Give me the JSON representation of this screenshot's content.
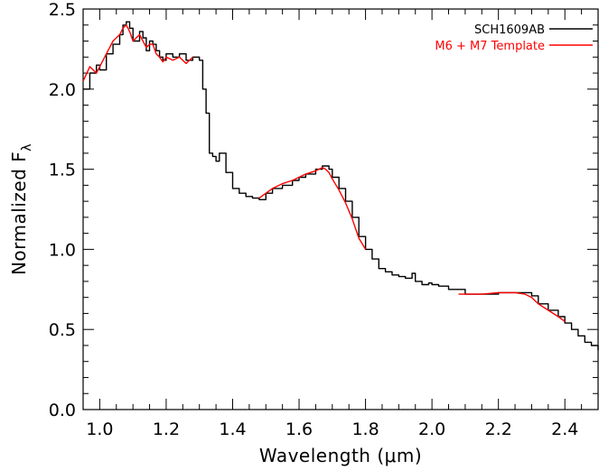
{
  "chart_data": {
    "type": "line",
    "xlabel": "Wavelength (μm)",
    "ylabel_main": "Normalized F",
    "ylabel_sub": "λ",
    "xlim": [
      0.95,
      2.5
    ],
    "ylim": [
      0.0,
      2.5
    ],
    "xticks": [
      1.0,
      1.2,
      1.4,
      1.6,
      1.8,
      2.0,
      2.2,
      2.4
    ],
    "xtick_labels": [
      "1.0",
      "1.2",
      "1.4",
      "1.6",
      "1.8",
      "2.0",
      "2.2",
      "2.4"
    ],
    "yticks": [
      0.0,
      0.5,
      1.0,
      1.5,
      2.0,
      2.5
    ],
    "ytick_labels": [
      "0.0",
      "0.5",
      "1.0",
      "1.5",
      "2.0",
      "2.5"
    ],
    "legend_position": "top-right",
    "series": [
      {
        "name": "SCH1609AB",
        "color": "#000000",
        "step": true,
        "x": [
          0.95,
          0.97,
          0.99,
          1.0,
          1.02,
          1.04,
          1.06,
          1.07,
          1.08,
          1.09,
          1.1,
          1.12,
          1.13,
          1.14,
          1.15,
          1.16,
          1.17,
          1.18,
          1.19,
          1.2,
          1.22,
          1.24,
          1.26,
          1.28,
          1.3,
          1.31,
          1.32,
          1.33,
          1.34,
          1.35,
          1.36,
          1.38,
          1.4,
          1.42,
          1.44,
          1.46,
          1.48,
          1.5,
          1.52,
          1.55,
          1.58,
          1.6,
          1.62,
          1.65,
          1.67,
          1.68,
          1.69,
          1.7,
          1.72,
          1.74,
          1.76,
          1.78,
          1.8,
          1.82,
          1.84,
          1.86,
          1.88,
          1.9,
          1.92,
          1.94,
          1.95,
          1.97,
          1.99,
          2.0,
          2.02,
          2.05,
          2.1,
          2.15,
          2.2,
          2.25,
          2.28,
          2.3,
          2.32,
          2.35,
          2.38,
          2.4,
          2.42,
          2.44,
          2.46,
          2.48,
          2.5
        ],
        "y": [
          2.0,
          2.1,
          2.15,
          2.12,
          2.22,
          2.28,
          2.34,
          2.4,
          2.42,
          2.38,
          2.3,
          2.36,
          2.32,
          2.24,
          2.3,
          2.28,
          2.24,
          2.2,
          2.18,
          2.22,
          2.2,
          2.22,
          2.18,
          2.2,
          2.18,
          2.0,
          1.85,
          1.6,
          1.58,
          1.55,
          1.6,
          1.48,
          1.38,
          1.35,
          1.33,
          1.32,
          1.31,
          1.35,
          1.38,
          1.4,
          1.43,
          1.45,
          1.47,
          1.5,
          1.52,
          1.52,
          1.5,
          1.45,
          1.38,
          1.3,
          1.2,
          1.08,
          1.0,
          0.94,
          0.88,
          0.86,
          0.84,
          0.83,
          0.82,
          0.85,
          0.8,
          0.78,
          0.79,
          0.78,
          0.77,
          0.75,
          0.72,
          0.72,
          0.73,
          0.73,
          0.73,
          0.71,
          0.66,
          0.62,
          0.58,
          0.54,
          0.5,
          0.46,
          0.42,
          0.4,
          0.37
        ]
      },
      {
        "name": "M6 + M7 Template",
        "color": "#ff0000",
        "step": false,
        "x": [
          0.95,
          0.97,
          0.99,
          1.0,
          1.02,
          1.04,
          1.06,
          1.07,
          1.08,
          1.09,
          1.1,
          1.12,
          1.13,
          1.14,
          1.15,
          1.16,
          1.17,
          1.18,
          1.19,
          1.2,
          1.22,
          1.24,
          1.26,
          1.28,
          null,
          1.48,
          1.5,
          1.52,
          1.55,
          1.58,
          1.6,
          1.62,
          1.65,
          1.67,
          1.68,
          1.69,
          1.7,
          1.72,
          1.74,
          1.76,
          1.78,
          1.8,
          null,
          2.08,
          2.1,
          2.15,
          2.2,
          2.25,
          2.28,
          2.3,
          2.32,
          2.35,
          2.38,
          2.4
        ],
        "y": [
          2.05,
          2.14,
          2.1,
          2.14,
          2.22,
          2.3,
          2.34,
          2.38,
          2.4,
          2.36,
          2.3,
          2.34,
          2.3,
          2.26,
          2.28,
          2.28,
          2.22,
          2.2,
          2.17,
          2.2,
          2.18,
          2.2,
          2.16,
          2.2,
          null,
          1.32,
          1.35,
          1.38,
          1.41,
          1.43,
          1.45,
          1.47,
          1.49,
          1.51,
          1.5,
          1.48,
          1.44,
          1.37,
          1.29,
          1.19,
          1.07,
          1.0,
          null,
          0.72,
          0.72,
          0.72,
          0.73,
          0.73,
          0.72,
          0.7,
          0.66,
          0.62,
          0.58,
          0.55
        ]
      }
    ]
  }
}
